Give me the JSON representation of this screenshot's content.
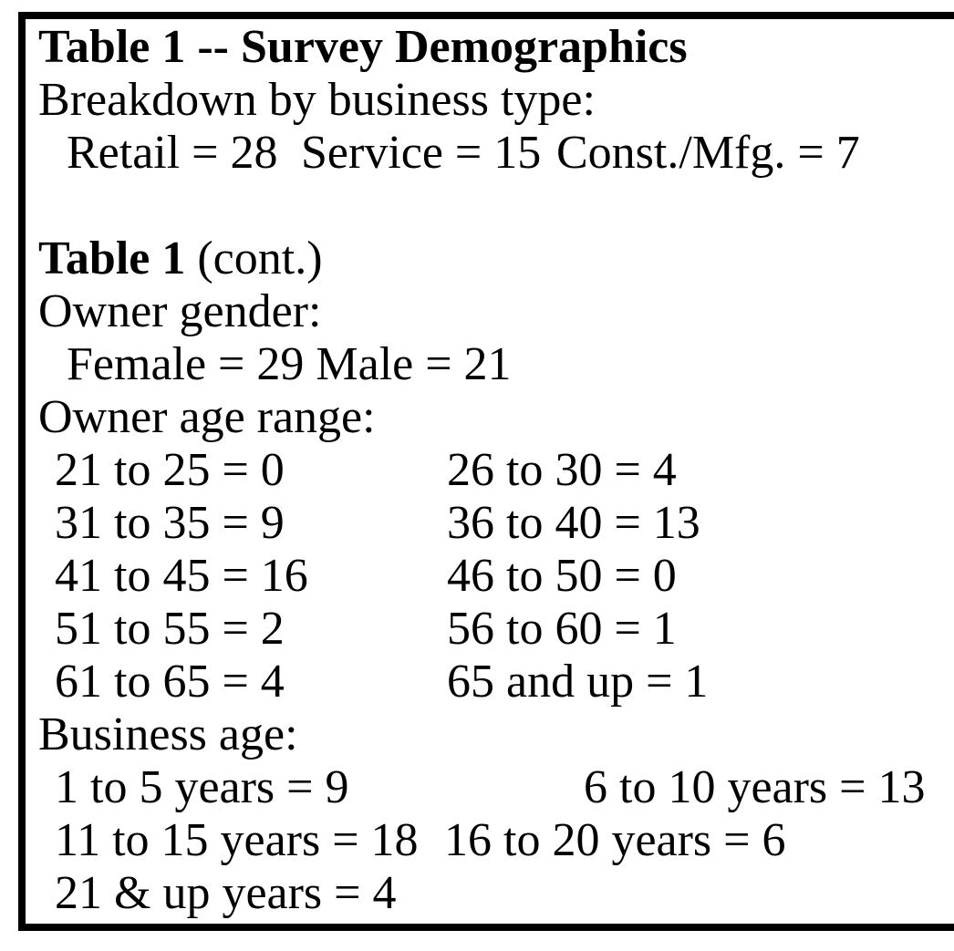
{
  "title": "Table 1 -- Survey Demographics",
  "sections": {
    "business_type": {
      "heading": "Breakdown by business type:",
      "items": [
        "Retail = 28",
        "Service = 15",
        "Const./Mfg. = 7"
      ]
    },
    "continuation": {
      "title_bold": "Table 1",
      "title_rest": "(cont.)"
    },
    "owner_gender": {
      "heading": "Owner gender:",
      "values": "Female = 29 Male = 21"
    },
    "owner_age": {
      "heading": "Owner age range:",
      "rows": [
        [
          "21 to 25 = 0",
          "26 to 30 = 4"
        ],
        [
          "31 to 35 = 9",
          "36 to 40 = 13"
        ],
        [
          "41 to 45 = 16",
          "46 to 50 = 0"
        ],
        [
          "51 to 55 = 2",
          "56 to 60 = 1"
        ],
        [
          "61 to 65 = 4",
          "65 and up = 1"
        ]
      ]
    },
    "business_age": {
      "heading": "Business age:",
      "rows": [
        [
          "1 to 5 years = 9",
          "6 to 10 years = 13"
        ],
        [
          "11 to 15 years = 18",
          "16 to 20 years = 6"
        ],
        [
          "21 & up years = 4"
        ]
      ]
    }
  }
}
